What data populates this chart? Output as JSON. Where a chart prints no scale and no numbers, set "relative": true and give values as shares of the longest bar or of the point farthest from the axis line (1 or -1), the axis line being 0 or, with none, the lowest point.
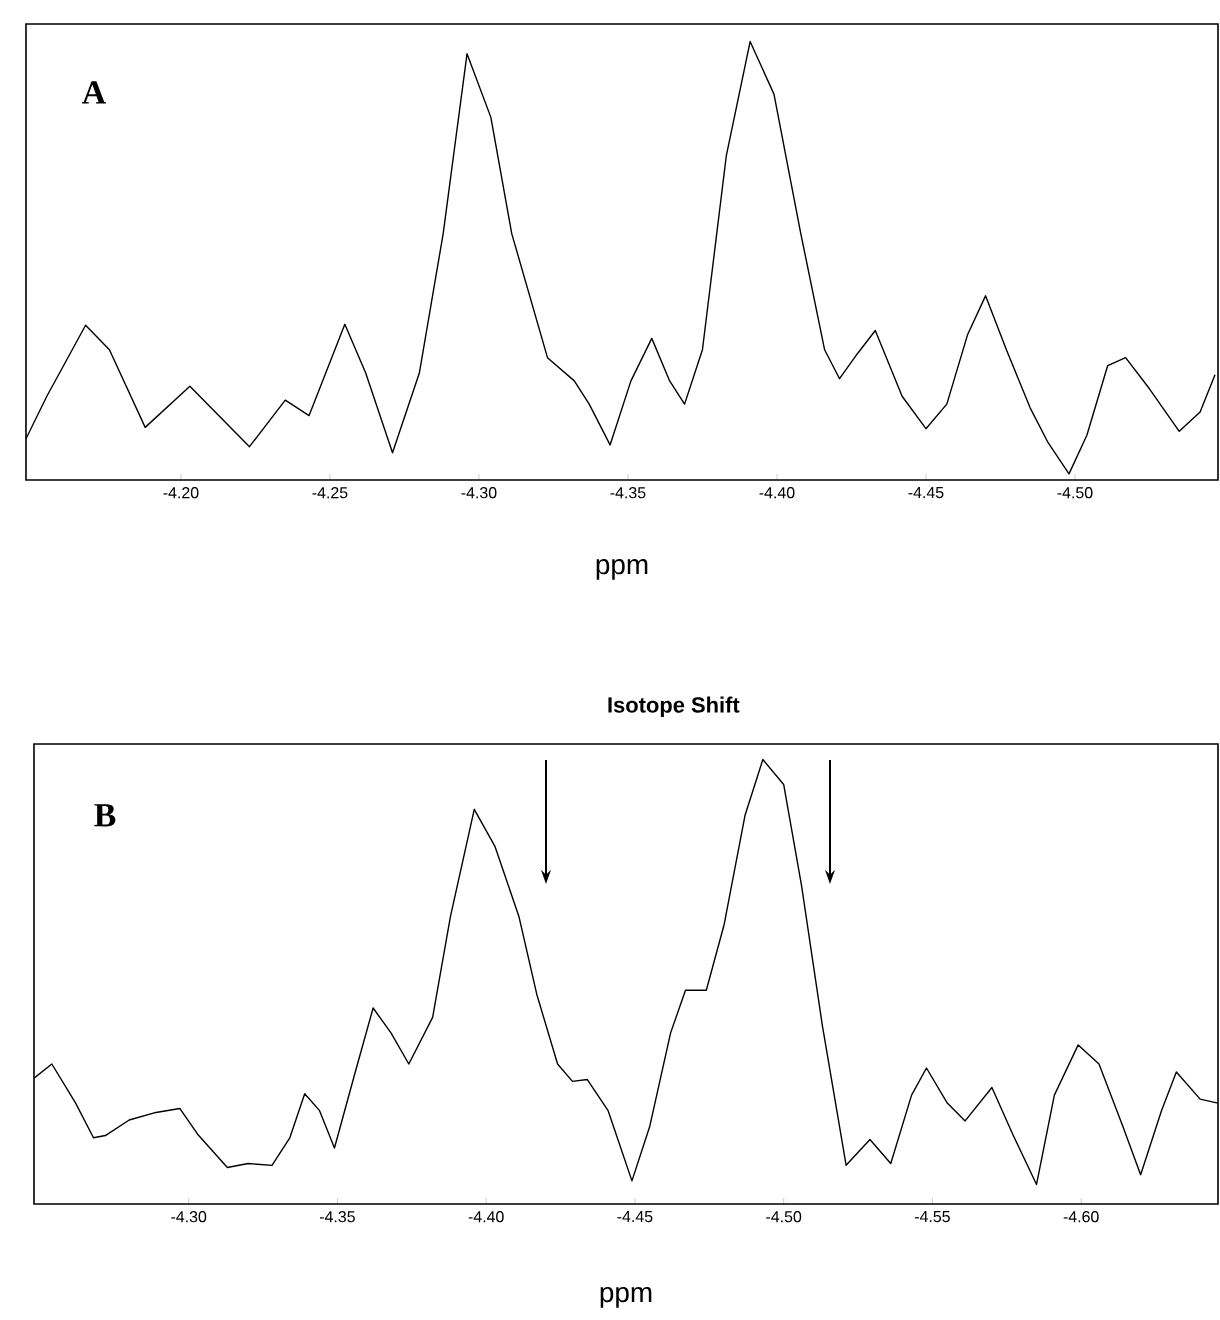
{
  "chart_data": [
    {
      "type": "line",
      "relative": true,
      "color": "#000000",
      "xlabel": "ppm",
      "xlim": [
        -4.148,
        -4.548
      ],
      "xticks": [
        {
          "value": -4.2,
          "label": "-4.20"
        },
        {
          "value": -4.25,
          "label": "-4.25"
        },
        {
          "value": -4.3,
          "label": "-4.30"
        },
        {
          "value": -4.35,
          "label": "-4.35"
        },
        {
          "value": -4.4,
          "label": "-4.40"
        },
        {
          "value": -4.45,
          "label": "-4.45"
        },
        {
          "value": -4.5,
          "label": "-4.50"
        }
      ],
      "annotations": [
        "A"
      ],
      "x": [
        -4.148,
        -4.155,
        -4.168,
        -4.176,
        -4.188,
        -4.203,
        -4.223,
        -4.235,
        -4.243,
        -4.255,
        -4.262,
        -4.271,
        -4.28,
        -4.288,
        -4.296,
        -4.304,
        -4.311,
        -4.323,
        -4.332,
        -4.337,
        -4.344,
        -4.351,
        -4.358,
        -4.364,
        -4.369,
        -4.375,
        -4.383,
        -4.391,
        -4.399,
        -4.408,
        -4.416,
        -4.421,
        -4.427,
        -4.433,
        -4.442,
        -4.45,
        -4.457,
        -4.464,
        -4.47,
        -4.477,
        -4.485,
        -4.491,
        -4.498,
        -4.504,
        -4.511,
        -4.517,
        -4.525,
        -4.535,
        -4.542,
        -4.547
      ],
      "values": [
        0.094,
        0.191,
        0.353,
        0.297,
        0.12,
        0.214,
        0.076,
        0.182,
        0.147,
        0.355,
        0.244,
        0.062,
        0.244,
        0.562,
        0.972,
        0.827,
        0.562,
        0.279,
        0.226,
        0.173,
        0.08,
        0.226,
        0.323,
        0.226,
        0.173,
        0.297,
        0.739,
        1.0,
        0.88,
        0.562,
        0.297,
        0.231,
        0.288,
        0.341,
        0.191,
        0.117,
        0.173,
        0.332,
        0.42,
        0.297,
        0.164,
        0.085,
        0.014,
        0.102,
        0.261,
        0.279,
        0.208,
        0.111,
        0.155,
        0.24
      ]
    },
    {
      "type": "line",
      "relative": true,
      "color": "#000000",
      "title": "Isotope Shift",
      "xlabel": "ppm",
      "xlim": [
        -4.248,
        -4.646
      ],
      "xticks": [
        {
          "value": -4.3,
          "label": "-4.30"
        },
        {
          "value": -4.35,
          "label": "-4.35"
        },
        {
          "value": -4.4,
          "label": "-4.40"
        },
        {
          "value": -4.45,
          "label": "-4.45"
        },
        {
          "value": -4.5,
          "label": "-4.50"
        },
        {
          "value": -4.55,
          "label": "-4.55"
        },
        {
          "value": -4.6,
          "label": "-4.60"
        }
      ],
      "annotations": [
        "B"
      ],
      "x": [
        -4.248,
        -4.254,
        -4.262,
        -4.268,
        -4.272,
        -4.28,
        -4.289,
        -4.297,
        -4.303,
        -4.313,
        -4.32,
        -4.328,
        -4.334,
        -4.339,
        -4.344,
        -4.349,
        -4.356,
        -4.362,
        -4.368,
        -4.374,
        -4.382,
        -4.388,
        -4.396,
        -4.403,
        -4.411,
        -4.417,
        -4.424,
        -4.429,
        -4.434,
        -4.441,
        -4.449,
        -4.455,
        -4.462,
        -4.467,
        -4.474,
        -4.48,
        -4.487,
        -4.493,
        -4.5,
        -4.506,
        -4.513,
        -4.521,
        -4.529,
        -4.536,
        -4.543,
        -4.548,
        -4.555,
        -4.561,
        -4.57,
        -4.577,
        -4.585,
        -4.591,
        -4.599,
        -4.606,
        -4.614,
        -4.62,
        -4.627,
        -4.632,
        -4.64,
        -4.646
      ],
      "values": [
        0.283,
        0.315,
        0.227,
        0.149,
        0.154,
        0.189,
        0.206,
        0.215,
        0.157,
        0.082,
        0.091,
        0.087,
        0.149,
        0.248,
        0.21,
        0.126,
        0.297,
        0.441,
        0.385,
        0.315,
        0.42,
        0.647,
        0.888,
        0.804,
        0.647,
        0.472,
        0.315,
        0.276,
        0.28,
        0.21,
        0.052,
        0.175,
        0.385,
        0.481,
        0.481,
        0.629,
        0.874,
        1.0,
        0.944,
        0.717,
        0.402,
        0.087,
        0.145,
        0.091,
        0.245,
        0.306,
        0.227,
        0.187,
        0.262,
        0.157,
        0.044,
        0.245,
        0.358,
        0.315,
        0.175,
        0.066,
        0.21,
        0.297,
        0.236,
        0.227
      ]
    }
  ]
}
